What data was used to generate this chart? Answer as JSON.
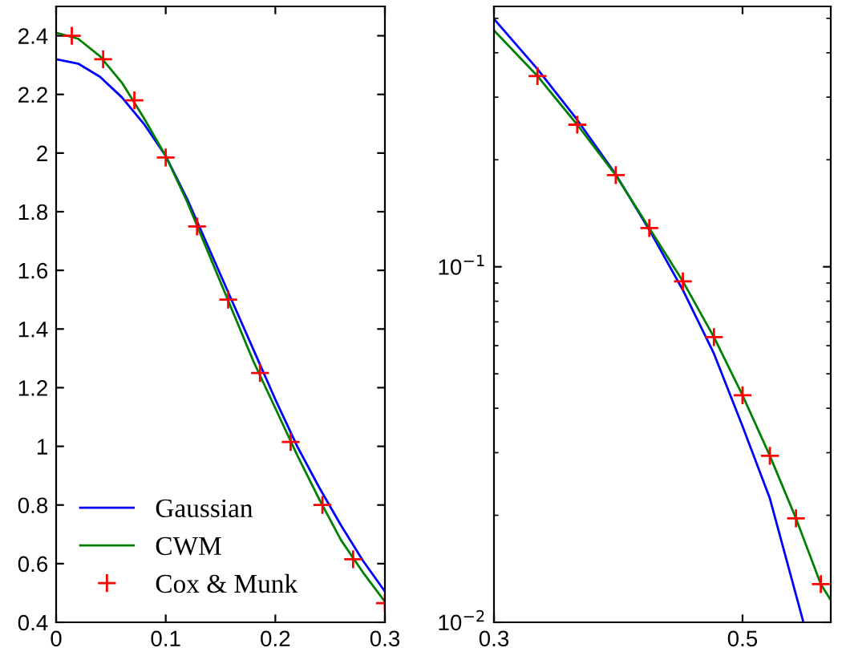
{
  "chart_data": [
    {
      "type": "line",
      "xlim": [
        0,
        0.3
      ],
      "xticks": [
        0,
        0.1,
        0.2,
        0.3
      ],
      "ylim": [
        0.4,
        2.5
      ],
      "yticks": [
        0.4,
        0.6,
        0.8,
        1,
        1.2,
        1.4,
        1.6,
        1.8,
        2,
        2.2,
        2.4
      ],
      "grid": false,
      "legend": "bottom left",
      "series": [
        {
          "name": "Gaussian",
          "color": "#0000ff",
          "marker": "none",
          "x": [
            0,
            0.02,
            0.04,
            0.06,
            0.08,
            0.1,
            0.12,
            0.14,
            0.16,
            0.18,
            0.2,
            0.22,
            0.24,
            0.26,
            0.28,
            0.3
          ],
          "values": [
            2.32,
            2.305,
            2.26,
            2.19,
            2.1,
            1.99,
            1.84,
            1.67,
            1.5,
            1.33,
            1.16,
            1.0,
            0.86,
            0.73,
            0.61,
            0.505
          ]
        },
        {
          "name": "CWM",
          "color": "#008000",
          "marker": "none",
          "x": [
            0,
            0.02,
            0.04,
            0.06,
            0.08,
            0.1,
            0.12,
            0.14,
            0.16,
            0.18,
            0.2,
            0.22,
            0.24,
            0.26,
            0.28,
            0.3
          ],
          "values": [
            2.41,
            2.39,
            2.33,
            2.24,
            2.12,
            1.99,
            1.83,
            1.65,
            1.47,
            1.29,
            1.13,
            0.97,
            0.82,
            0.68,
            0.57,
            0.47
          ]
        },
        {
          "name": "Cox & Munk",
          "type": "scatter",
          "color": "#ff0000",
          "marker": "cross",
          "x": [
            0.0143,
            0.0429,
            0.0714,
            0.1,
            0.1286,
            0.157,
            0.186,
            0.214,
            0.243,
            0.271,
            0.3
          ],
          "values": [
            2.4,
            2.32,
            2.18,
            1.985,
            1.75,
            1.5,
            1.25,
            1.015,
            0.8,
            0.615,
            0.465
          ]
        }
      ]
    },
    {
      "type": "line",
      "log": "y",
      "xlim": [
        0.3,
        0.571
      ],
      "xticks": [
        0.3,
        0.5
      ],
      "ylim": [
        0.01,
        0.54
      ],
      "yticks": [
        {
          "value": 0.01,
          "label": "10$^{−2}$"
        },
        {
          "value": 0.1,
          "label": "10$^{−1}$"
        }
      ],
      "grid": false,
      "legend": false,
      "series": [
        {
          "color": "#0000ff",
          "marker": "none",
          "x": [
            0.3,
            0.335,
            0.367,
            0.398,
            0.425,
            0.452,
            0.477,
            0.5,
            0.522,
            0.549
          ],
          "values": [
            0.498,
            0.36,
            0.259,
            0.182,
            0.127,
            0.086,
            0.057,
            0.0356,
            0.0223,
            0.01
          ]
        },
        {
          "color": "#008000",
          "marker": "none",
          "x": [
            0.3,
            0.335,
            0.367,
            0.398,
            0.425,
            0.452,
            0.477,
            0.5,
            0.522,
            0.543,
            0.563,
            0.571
          ],
          "values": [
            0.462,
            0.344,
            0.251,
            0.181,
            0.1285,
            0.091,
            0.0634,
            0.0435,
            0.0294,
            0.0196,
            0.0128,
            0.01155
          ]
        },
        {
          "type": "scatter",
          "color": "#ff0000",
          "marker": "cross",
          "x": [
            0.335,
            0.367,
            0.398,
            0.425,
            0.452,
            0.477,
            0.5,
            0.522,
            0.543,
            0.563
          ],
          "values": [
            0.344,
            0.251,
            0.181,
            0.1285,
            0.091,
            0.0634,
            0.0435,
            0.0294,
            0.0196,
            0.0128
          ]
        }
      ]
    }
  ]
}
